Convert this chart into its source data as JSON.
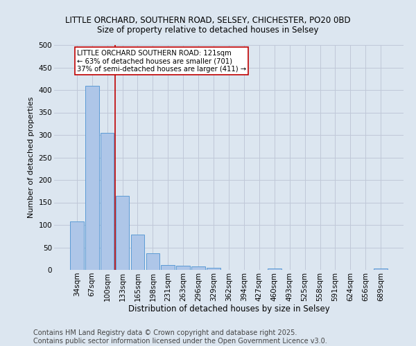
{
  "title_line1": "LITTLE ORCHARD, SOUTHERN ROAD, SELSEY, CHICHESTER, PO20 0BD",
  "title_line2": "Size of property relative to detached houses in Selsey",
  "xlabel": "Distribution of detached houses by size in Selsey",
  "ylabel": "Number of detached properties",
  "categories": [
    "34sqm",
    "67sqm",
    "100sqm",
    "133sqm",
    "165sqm",
    "198sqm",
    "231sqm",
    "263sqm",
    "296sqm",
    "329sqm",
    "362sqm",
    "394sqm",
    "427sqm",
    "460sqm",
    "493sqm",
    "525sqm",
    "558sqm",
    "591sqm",
    "624sqm",
    "656sqm",
    "689sqm"
  ],
  "values": [
    107,
    410,
    305,
    165,
    78,
    37,
    11,
    10,
    7,
    4,
    0,
    0,
    0,
    3,
    0,
    0,
    0,
    0,
    0,
    0,
    3
  ],
  "bar_color": "#aec6e8",
  "bar_edge_color": "#5b9bd5",
  "vline_x": 2.5,
  "vline_color": "#c00000",
  "annotation_box_text": "LITTLE ORCHARD SOUTHERN ROAD: 121sqm\n← 63% of detached houses are smaller (701)\n37% of semi-detached houses are larger (411) →",
  "annotation_box_color": "#c00000",
  "annotation_box_fill": "#ffffff",
  "ylim": [
    0,
    500
  ],
  "yticks": [
    0,
    50,
    100,
    150,
    200,
    250,
    300,
    350,
    400,
    450,
    500
  ],
  "grid_color": "#c0c8d8",
  "background_color": "#dce6f0",
  "footer_line1": "Contains HM Land Registry data © Crown copyright and database right 2025.",
  "footer_line2": "Contains public sector information licensed under the Open Government Licence v3.0.",
  "footer_fontsize": 7.0,
  "title_fontsize": 8.5,
  "subtitle_fontsize": 8.5,
  "xlabel_fontsize": 8.5,
  "ylabel_fontsize": 8.0,
  "tick_fontsize": 7.5,
  "annot_fontsize": 7.2
}
